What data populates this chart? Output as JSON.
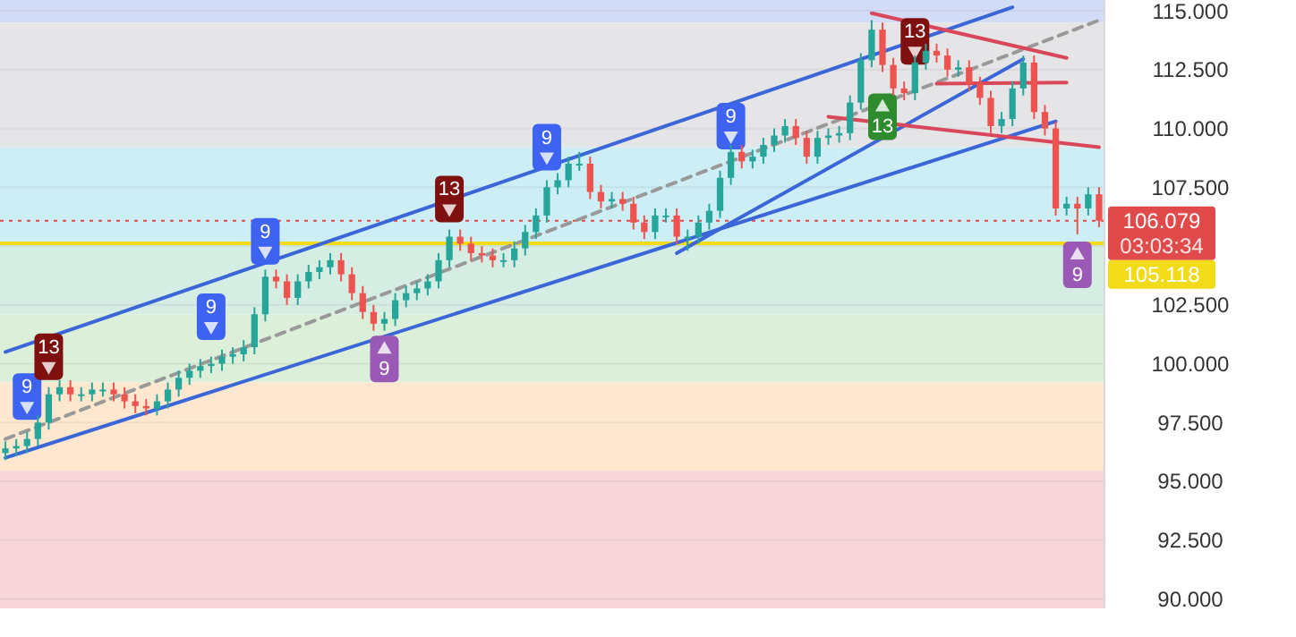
{
  "chart_data": {
    "type": "candlestick",
    "categories": [
      null,
      null,
      null,
      null,
      null,
      null,
      null,
      null,
      null,
      null,
      null,
      null,
      null,
      null,
      null,
      null,
      null,
      null,
      null,
      null,
      null,
      null,
      null,
      null,
      null,
      null,
      null,
      null,
      null,
      null,
      null,
      null,
      null,
      null,
      null,
      null,
      null,
      null,
      null,
      null,
      null,
      null,
      null,
      null,
      null,
      null,
      null,
      null,
      null,
      null,
      null,
      null,
      null,
      null,
      null,
      null,
      null,
      null,
      null,
      null,
      null,
      null,
      null,
      null,
      null,
      null,
      null,
      null,
      null,
      null,
      null,
      null,
      null,
      null,
      null,
      null,
      null,
      null,
      null,
      null,
      null,
      null,
      null,
      null,
      null,
      null,
      null,
      null,
      null,
      null,
      null,
      null,
      null,
      null,
      null,
      null,
      null,
      null,
      null,
      null,
      null,
      null
    ],
    "ohlc": [
      [
        96.2,
        96.7,
        95.9,
        96.4
      ],
      [
        96.4,
        96.8,
        96.1,
        96.5
      ],
      [
        96.5,
        97.1,
        96.2,
        96.8
      ],
      [
        96.8,
        97.8,
        96.5,
        97.5
      ],
      [
        97.5,
        99.0,
        97.2,
        98.7
      ],
      [
        98.7,
        99.3,
        98.4,
        99.0
      ],
      [
        99.0,
        99.3,
        98.4,
        98.7
      ],
      [
        98.7,
        99.0,
        98.4,
        98.7
      ],
      [
        98.7,
        99.2,
        98.4,
        98.9
      ],
      [
        98.9,
        99.2,
        98.6,
        98.9
      ],
      [
        98.9,
        99.2,
        98.4,
        98.7
      ],
      [
        98.7,
        99.0,
        98.1,
        98.4
      ],
      [
        98.4,
        98.7,
        97.9,
        98.2
      ],
      [
        98.2,
        98.5,
        97.8,
        98.1
      ],
      [
        98.1,
        98.7,
        97.8,
        98.4
      ],
      [
        98.4,
        99.2,
        98.1,
        98.9
      ],
      [
        98.9,
        99.7,
        98.6,
        99.4
      ],
      [
        99.4,
        100.0,
        99.1,
        99.7
      ],
      [
        99.7,
        100.2,
        99.4,
        99.9
      ],
      [
        99.9,
        100.3,
        99.6,
        100.0
      ],
      [
        100.0,
        100.6,
        99.7,
        100.3
      ],
      [
        100.3,
        100.7,
        100.0,
        100.4
      ],
      [
        100.4,
        101.0,
        100.1,
        100.7
      ],
      [
        100.7,
        102.4,
        100.4,
        102.1
      ],
      [
        102.1,
        104.0,
        101.8,
        103.7
      ],
      [
        103.7,
        104.0,
        103.2,
        103.5
      ],
      [
        103.5,
        103.8,
        102.5,
        102.8
      ],
      [
        102.8,
        103.8,
        102.5,
        103.5
      ],
      [
        103.5,
        104.2,
        103.2,
        103.9
      ],
      [
        103.9,
        104.4,
        103.6,
        104.1
      ],
      [
        104.1,
        104.7,
        103.8,
        104.4
      ],
      [
        104.4,
        104.7,
        103.5,
        103.8
      ],
      [
        103.8,
        104.1,
        102.7,
        103.0
      ],
      [
        103.0,
        103.3,
        101.9,
        102.2
      ],
      [
        102.2,
        102.5,
        101.4,
        101.7
      ],
      [
        101.7,
        102.2,
        101.4,
        101.9
      ],
      [
        101.9,
        103.0,
        101.6,
        102.7
      ],
      [
        102.7,
        103.3,
        102.4,
        103.0
      ],
      [
        103.0,
        103.5,
        102.7,
        103.2
      ],
      [
        103.2,
        103.8,
        102.9,
        103.5
      ],
      [
        103.5,
        104.7,
        103.2,
        104.4
      ],
      [
        104.4,
        105.7,
        104.1,
        105.4
      ],
      [
        105.4,
        105.7,
        104.8,
        105.1
      ],
      [
        105.1,
        105.4,
        104.4,
        104.7
      ],
      [
        104.7,
        105.0,
        104.3,
        104.6
      ],
      [
        104.6,
        104.9,
        104.1,
        104.4
      ],
      [
        104.4,
        104.7,
        104.1,
        104.4
      ],
      [
        104.4,
        105.2,
        104.1,
        104.9
      ],
      [
        104.9,
        105.9,
        104.6,
        105.6
      ],
      [
        105.6,
        106.6,
        105.3,
        106.3
      ],
      [
        106.3,
        107.8,
        106.0,
        107.5
      ],
      [
        107.5,
        108.1,
        107.2,
        107.8
      ],
      [
        107.8,
        108.8,
        107.5,
        108.5
      ],
      [
        108.5,
        109.0,
        108.2,
        108.5
      ],
      [
        108.5,
        108.8,
        107.0,
        107.3
      ],
      [
        107.3,
        107.6,
        106.6,
        106.9
      ],
      [
        106.9,
        107.3,
        106.6,
        107.0
      ],
      [
        107.0,
        107.3,
        106.5,
        106.8
      ],
      [
        106.8,
        107.1,
        105.7,
        106.0
      ],
      [
        106.0,
        106.3,
        105.3,
        105.6
      ],
      [
        105.6,
        106.6,
        105.3,
        106.3
      ],
      [
        106.3,
        106.6,
        106.0,
        106.3
      ],
      [
        106.3,
        106.6,
        105.1,
        105.4
      ],
      [
        105.4,
        105.7,
        104.8,
        105.4
      ],
      [
        105.4,
        106.3,
        105.1,
        106.0
      ],
      [
        106.0,
        106.8,
        105.7,
        106.5
      ],
      [
        106.5,
        108.2,
        106.2,
        107.9
      ],
      [
        107.9,
        109.3,
        107.6,
        109.0
      ],
      [
        109.0,
        109.3,
        108.3,
        108.6
      ],
      [
        108.6,
        109.1,
        108.3,
        108.8
      ],
      [
        108.8,
        109.6,
        108.5,
        109.3
      ],
      [
        109.3,
        110.0,
        109.0,
        109.7
      ],
      [
        109.7,
        110.4,
        109.4,
        110.1
      ],
      [
        110.1,
        110.4,
        109.3,
        109.6
      ],
      [
        109.6,
        109.9,
        108.5,
        108.8
      ],
      [
        108.8,
        109.9,
        108.5,
        109.6
      ],
      [
        109.6,
        110.0,
        109.3,
        109.7
      ],
      [
        109.7,
        110.1,
        109.4,
        109.8
      ],
      [
        109.8,
        111.4,
        109.5,
        111.1
      ],
      [
        111.1,
        113.2,
        110.8,
        112.9
      ],
      [
        112.9,
        114.6,
        112.6,
        114.2
      ],
      [
        114.2,
        114.5,
        112.4,
        112.7
      ],
      [
        112.7,
        113.0,
        111.4,
        111.7
      ],
      [
        111.7,
        112.0,
        111.2,
        111.5
      ],
      [
        111.5,
        113.1,
        111.2,
        112.8
      ],
      [
        112.8,
        113.6,
        112.5,
        113.3
      ],
      [
        113.3,
        113.6,
        112.8,
        113.1
      ],
      [
        113.1,
        113.4,
        112.2,
        112.5
      ],
      [
        112.5,
        112.9,
        112.2,
        112.6
      ],
      [
        112.6,
        112.9,
        111.6,
        111.9
      ],
      [
        111.9,
        112.2,
        111.0,
        111.3
      ],
      [
        111.3,
        111.6,
        109.8,
        110.1
      ],
      [
        110.1,
        110.7,
        109.8,
        110.4
      ],
      [
        110.4,
        112.0,
        110.1,
        111.7
      ],
      [
        111.7,
        113.1,
        111.4,
        112.8
      ],
      [
        112.8,
        113.1,
        110.4,
        110.7
      ],
      [
        110.7,
        111.0,
        109.7,
        110.0
      ],
      [
        110.0,
        110.3,
        106.3,
        106.6
      ],
      [
        106.6,
        107.1,
        106.3,
        106.8
      ],
      [
        106.8,
        107.1,
        105.5,
        106.6
      ],
      [
        106.6,
        107.5,
        106.3,
        107.2
      ],
      [
        107.2,
        107.5,
        105.8,
        106.079
      ]
    ],
    "series": [
      {
        "type": "line",
        "color": "#999999",
        "line_style": "dashed",
        "values": [
          96.8,
          null,
          null,
          null,
          null,
          null,
          null,
          null,
          null,
          null,
          null,
          null,
          null,
          null,
          null,
          null,
          null,
          null,
          null,
          null,
          null,
          null,
          null,
          null,
          null,
          null,
          null,
          null,
          null,
          null,
          null,
          null,
          null,
          null,
          null,
          null,
          null,
          null,
          null,
          null,
          null,
          null,
          null,
          null,
          null,
          null,
          null,
          null,
          null,
          null,
          null,
          null,
          null,
          null,
          null,
          null,
          null,
          null,
          null,
          null,
          null,
          null,
          null,
          null,
          null,
          null,
          null,
          null,
          null,
          null,
          null,
          null,
          null,
          null,
          null,
          null,
          null,
          null,
          null,
          null,
          null,
          null,
          null,
          null,
          null,
          null,
          null,
          null,
          null,
          null,
          null,
          null,
          null,
          null,
          null,
          null,
          null,
          null,
          null,
          null,
          null,
          114.6
        ]
      },
      {
        "type": "line",
        "color": "#3a66d8",
        "line_style": "solid",
        "values": [
          100.5,
          null,
          null,
          null,
          null,
          null,
          null,
          null,
          null,
          null,
          null,
          null,
          null,
          null,
          null,
          null,
          null,
          null,
          null,
          null,
          null,
          null,
          null,
          null,
          null,
          null,
          null,
          null,
          null,
          null,
          null,
          null,
          null,
          null,
          null,
          null,
          null,
          null,
          null,
          null,
          null,
          null,
          null,
          null,
          null,
          null,
          null,
          null,
          null,
          null,
          null,
          null,
          null,
          null,
          null,
          null,
          null,
          null,
          null,
          null,
          null,
          null,
          null,
          null,
          null,
          null,
          null,
          null,
          null,
          null,
          null,
          null,
          null,
          null,
          null,
          null,
          null,
          null,
          null,
          null,
          null,
          null,
          null,
          null,
          null,
          null,
          null,
          null,
          null,
          null,
          null,
          null,
          null,
          115.15,
          null,
          null,
          null,
          null,
          null,
          null,
          null,
          null
        ]
      },
      {
        "type": "line",
        "color": "#3a66d8",
        "line_style": "solid",
        "values": [
          96.0,
          null,
          null,
          null,
          null,
          null,
          null,
          null,
          null,
          null,
          null,
          null,
          null,
          null,
          null,
          null,
          null,
          null,
          null,
          null,
          null,
          null,
          null,
          null,
          null,
          null,
          null,
          null,
          null,
          null,
          null,
          null,
          null,
          null,
          null,
          null,
          null,
          null,
          null,
          null,
          null,
          null,
          null,
          null,
          null,
          null,
          null,
          null,
          null,
          null,
          null,
          null,
          null,
          null,
          null,
          null,
          null,
          null,
          null,
          null,
          null,
          null,
          null,
          null,
          null,
          null,
          null,
          null,
          null,
          null,
          null,
          null,
          null,
          null,
          null,
          null,
          null,
          null,
          null,
          null,
          null,
          null,
          null,
          null,
          null,
          null,
          null,
          null,
          null,
          null,
          null,
          null,
          null,
          null,
          null,
          null,
          null,
          110.3,
          null,
          null,
          null,
          null
        ]
      },
      {
        "type": "line",
        "color": "#3a66d8",
        "line_style": "solid",
        "values": [
          null,
          null,
          null,
          null,
          null,
          null,
          null,
          null,
          null,
          null,
          null,
          null,
          null,
          null,
          null,
          null,
          null,
          null,
          null,
          null,
          null,
          null,
          null,
          null,
          null,
          null,
          null,
          null,
          null,
          null,
          null,
          null,
          null,
          null,
          null,
          null,
          null,
          null,
          null,
          null,
          null,
          null,
          null,
          null,
          null,
          null,
          null,
          null,
          null,
          null,
          null,
          null,
          null,
          null,
          null,
          null,
          null,
          null,
          null,
          null,
          null,
          null,
          104.7,
          null,
          null,
          null,
          null,
          null,
          null,
          null,
          null,
          null,
          null,
          null,
          null,
          null,
          null,
          null,
          null,
          null,
          null,
          null,
          null,
          null,
          null,
          null,
          null,
          null,
          null,
          null,
          null,
          null,
          null,
          null,
          112.95,
          null,
          null,
          null,
          null,
          null,
          null,
          null
        ]
      },
      {
        "type": "line",
        "color": "#d9485a",
        "line_style": "solid",
        "values": [
          null,
          null,
          null,
          null,
          null,
          null,
          null,
          null,
          null,
          null,
          null,
          null,
          null,
          null,
          null,
          null,
          null,
          null,
          null,
          null,
          null,
          null,
          null,
          null,
          null,
          null,
          null,
          null,
          null,
          null,
          null,
          null,
          null,
          null,
          null,
          null,
          null,
          null,
          null,
          null,
          null,
          null,
          null,
          null,
          null,
          null,
          null,
          null,
          null,
          null,
          null,
          null,
          null,
          null,
          null,
          null,
          null,
          null,
          null,
          null,
          null,
          null,
          null,
          null,
          null,
          null,
          null,
          null,
          null,
          null,
          null,
          null,
          null,
          null,
          null,
          null,
          null,
          null,
          null,
          null,
          114.9,
          null,
          null,
          null,
          null,
          null,
          null,
          null,
          null,
          null,
          null,
          null,
          null,
          null,
          null,
          null,
          null,
          null,
          113.0,
          null,
          null,
          null
        ]
      },
      {
        "type": "line",
        "color": "#d9485a",
        "line_style": "solid",
        "values": [
          null,
          null,
          null,
          null,
          null,
          null,
          null,
          null,
          null,
          null,
          null,
          null,
          null,
          null,
          null,
          null,
          null,
          null,
          null,
          null,
          null,
          null,
          null,
          null,
          null,
          null,
          null,
          null,
          null,
          null,
          null,
          null,
          null,
          null,
          null,
          null,
          null,
          null,
          null,
          null,
          null,
          null,
          null,
          null,
          null,
          null,
          null,
          null,
          null,
          null,
          null,
          null,
          null,
          null,
          null,
          null,
          null,
          null,
          null,
          null,
          null,
          null,
          null,
          null,
          null,
          null,
          null,
          null,
          null,
          null,
          null,
          null,
          null,
          null,
          null,
          null,
          null,
          null,
          null,
          null,
          null,
          null,
          null,
          null,
          null,
          null,
          111.9,
          null,
          null,
          null,
          null,
          null,
          null,
          null,
          null,
          null,
          null,
          null,
          111.95,
          null,
          null,
          null
        ]
      },
      {
        "type": "line",
        "color": "#d9485a",
        "line_style": "solid",
        "values": [
          null,
          null,
          null,
          null,
          null,
          null,
          null,
          null,
          null,
          null,
          null,
          null,
          null,
          null,
          null,
          null,
          null,
          null,
          null,
          null,
          null,
          null,
          null,
          null,
          null,
          null,
          null,
          null,
          null,
          null,
          null,
          null,
          null,
          null,
          null,
          null,
          null,
          null,
          null,
          null,
          null,
          null,
          null,
          null,
          null,
          null,
          null,
          null,
          null,
          null,
          null,
          null,
          null,
          null,
          null,
          null,
          null,
          null,
          null,
          null,
          null,
          null,
          null,
          null,
          null,
          null,
          null,
          null,
          null,
          null,
          null,
          null,
          null,
          null,
          null,
          null,
          110.5,
          null,
          null,
          null,
          null,
          null,
          null,
          null,
          null,
          null,
          null,
          null,
          null,
          null,
          null,
          null,
          null,
          null,
          null,
          null,
          null,
          null,
          null,
          null,
          null,
          109.2
        ]
      },
      {
        "type": "scatter",
        "name": "9",
        "color": "#3d63f0",
        "values": [
          null,
          null,
          98.6,
          null,
          null,
          null,
          null,
          null,
          null,
          null,
          null,
          null,
          null,
          null,
          null,
          null,
          null,
          null,
          null,
          102.0,
          null,
          null,
          null,
          null,
          105.2,
          null,
          null,
          null,
          null,
          null,
          null,
          null,
          null,
          null,
          null,
          null,
          null,
          null,
          null,
          null,
          null,
          null,
          null,
          null,
          null,
          null,
          null,
          null,
          null,
          null,
          109.2,
          null,
          null,
          null,
          null,
          null,
          null,
          null,
          null,
          null,
          null,
          null,
          null,
          null,
          null,
          null,
          null,
          110.1,
          null,
          null,
          null,
          null,
          null,
          null,
          null,
          null,
          null,
          null,
          null,
          null,
          null,
          null,
          null,
          null,
          null,
          null,
          null,
          null,
          null,
          null,
          null,
          null,
          null,
          null,
          null,
          null,
          null,
          null,
          null,
          null,
          null,
          null
        ]
      },
      {
        "type": "scatter",
        "name": "13",
        "color": "#7f1010",
        "values": [
          null,
          null,
          null,
          null,
          100.3,
          null,
          null,
          null,
          null,
          null,
          null,
          null,
          null,
          null,
          null,
          null,
          null,
          null,
          null,
          null,
          null,
          null,
          null,
          null,
          null,
          null,
          null,
          null,
          null,
          null,
          null,
          null,
          null,
          null,
          null,
          null,
          null,
          null,
          null,
          null,
          null,
          107.0,
          null,
          null,
          null,
          null,
          null,
          null,
          null,
          null,
          null,
          null,
          null,
          null,
          null,
          null,
          null,
          null,
          null,
          null,
          null,
          null,
          null,
          null,
          null,
          null,
          null,
          null,
          null,
          null,
          null,
          null,
          null,
          null,
          null,
          null,
          null,
          null,
          null,
          null,
          null,
          null,
          null,
          null,
          113.7,
          null,
          null,
          null,
          null,
          null,
          null,
          null,
          null,
          null,
          null,
          null,
          null,
          null,
          null,
          null,
          null,
          null
        ]
      },
      {
        "type": "scatter",
        "name": "9",
        "color": "#9b59b6",
        "values": [
          null,
          null,
          null,
          null,
          null,
          null,
          null,
          null,
          null,
          null,
          null,
          null,
          null,
          null,
          null,
          null,
          null,
          null,
          null,
          null,
          null,
          null,
          null,
          null,
          null,
          null,
          null,
          null,
          null,
          null,
          null,
          null,
          null,
          null,
          null,
          100.2,
          null,
          null,
          null,
          null,
          null,
          null,
          null,
          null,
          null,
          null,
          null,
          null,
          null,
          null,
          null,
          null,
          null,
          null,
          null,
          null,
          null,
          null,
          null,
          null,
          null,
          null,
          null,
          null,
          null,
          null,
          null,
          null,
          null,
          null,
          null,
          null,
          null,
          null,
          null,
          null,
          null,
          null,
          null,
          null,
          null,
          null,
          null,
          null,
          null,
          null,
          null,
          null,
          null,
          null,
          null,
          null,
          null,
          null,
          null,
          null,
          null,
          null,
          null,
          104.2,
          null,
          null
        ]
      },
      {
        "type": "scatter",
        "name": "13",
        "color": "#2e8b2e",
        "values": [
          null,
          null,
          null,
          null,
          null,
          null,
          null,
          null,
          null,
          null,
          null,
          null,
          null,
          null,
          null,
          null,
          null,
          null,
          null,
          null,
          null,
          null,
          null,
          null,
          null,
          null,
          null,
          null,
          null,
          null,
          null,
          null,
          null,
          null,
          null,
          null,
          null,
          null,
          null,
          null,
          null,
          null,
          null,
          null,
          null,
          null,
          null,
          null,
          null,
          null,
          null,
          null,
          null,
          null,
          null,
          null,
          null,
          null,
          null,
          null,
          null,
          null,
          null,
          null,
          null,
          null,
          null,
          null,
          null,
          null,
          null,
          null,
          null,
          null,
          null,
          null,
          null,
          null,
          null,
          null,
          null,
          110.5,
          null,
          null,
          null,
          null,
          null,
          null,
          null,
          null,
          null,
          null,
          null,
          null,
          null,
          null,
          null,
          null,
          null,
          null,
          null,
          null
        ]
      }
    ],
    "ylim": [
      89.6,
      115.46
    ],
    "yticks": [
      {
        "value": 90,
        "label": "90.000"
      },
      {
        "value": 92.5,
        "label": "92.500"
      },
      {
        "value": 95,
        "label": "95.000"
      },
      {
        "value": 97.5,
        "label": "97.500"
      },
      {
        "value": 100,
        "label": "100.000"
      },
      {
        "value": 102.5,
        "label": "102.500"
      },
      {
        "value": 105,
        "label": null
      },
      {
        "value": 107.5,
        "label": "107.500"
      },
      {
        "value": 110,
        "label": "110.000"
      },
      {
        "value": 112.5,
        "label": "112.500"
      },
      {
        "value": 115,
        "label": "115.000"
      }
    ],
    "tick_labels": "y",
    "grid": "y",
    "bands": [
      {
        "axis": "y",
        "from": 114.5,
        "to": 115.46,
        "color": "#d3dcf7"
      },
      {
        "axis": "y",
        "from": 109.2,
        "to": 114.5,
        "color": "#e5e5e8"
      },
      {
        "axis": "y",
        "from": 105.12,
        "to": 109.2,
        "color": "#cdeef5"
      },
      {
        "axis": "y",
        "from": 102.1,
        "to": 105.12,
        "color": "#d6ede4"
      },
      {
        "axis": "y",
        "from": 99.2,
        "to": 102.1,
        "color": "#dcefd9"
      },
      {
        "axis": "y",
        "from": 95.45,
        "to": 99.2,
        "color": "#fde8cf"
      },
      {
        "axis": "y",
        "from": 89.6,
        "to": 95.45,
        "color": "#f8d5d8"
      }
    ],
    "ref_lines": [
      {
        "axis": "y",
        "value": 106.079,
        "label": "106.079",
        "color": "#e04a4a",
        "line_style": "dotted"
      },
      {
        "axis": "y",
        "value": 105.118,
        "label": "105.118",
        "color": "#f2dc1a",
        "line_style": "solid"
      }
    ],
    "annotations": [
      "03:03:34"
    ]
  }
}
